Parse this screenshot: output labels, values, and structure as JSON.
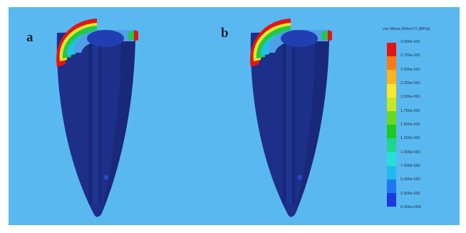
{
  "panels": [
    {
      "label": "a"
    },
    {
      "label": "b"
    }
  ],
  "legend": {
    "title": "von Mises (N/mm^2 (MPa))",
    "ticks": [
      "3.000e-001",
      "2.750e-001",
      "2.500e-001",
      "2.250e-001",
      "2.000e-001",
      "1.750e-001",
      "1.500e-001",
      "1.250e-001",
      "1.000e-001",
      "7.500e-002",
      "5.000e-002",
      "2.500e-002",
      "0.000e+000"
    ],
    "colors": [
      "#e61313",
      "#ff7a10",
      "#ffb21a",
      "#ffe82a",
      "#c8e820",
      "#6ad81e",
      "#1ec81e",
      "#1ed68a",
      "#25e0d6",
      "#22b8f0",
      "#1e78f0",
      "#1a3ae0"
    ]
  },
  "colors": {
    "background": "#5ab8f0",
    "model_body": "#1d2f88",
    "model_inner": "#203a9a"
  }
}
